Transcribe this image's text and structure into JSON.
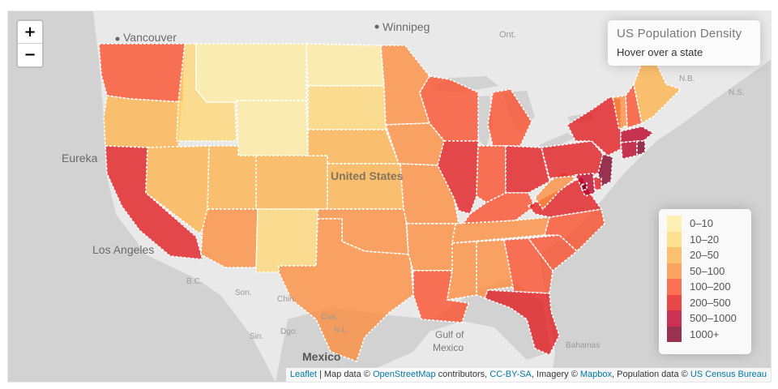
{
  "map": {
    "zoom_in_label": "+",
    "zoom_out_label": "−",
    "states": [
      {
        "id": "WA",
        "density": 102.6
      },
      {
        "id": "OR",
        "density": 40.33
      },
      {
        "id": "CA",
        "density": 241.7
      },
      {
        "id": "ID",
        "density": 19.15
      },
      {
        "id": "NV",
        "density": 24.8
      },
      {
        "id": "MT",
        "density": 6.858
      },
      {
        "id": "WY",
        "density": 5.851
      },
      {
        "id": "UT",
        "density": 34.3
      },
      {
        "id": "AZ",
        "density": 57.05
      },
      {
        "id": "CO",
        "density": 49.33
      },
      {
        "id": "NM",
        "density": 17.16
      },
      {
        "id": "ND",
        "density": 9.916
      },
      {
        "id": "SD",
        "density": 10.86
      },
      {
        "id": "NE",
        "density": 23.97
      },
      {
        "id": "KS",
        "density": 35.09
      },
      {
        "id": "OK",
        "density": 55.22
      },
      {
        "id": "TX",
        "density": 98.07
      },
      {
        "id": "MN",
        "density": 67.14
      },
      {
        "id": "IA",
        "density": 54.81
      },
      {
        "id": "MO",
        "density": 87.26
      },
      {
        "id": "AR",
        "density": 56.43
      },
      {
        "id": "LA",
        "density": 105
      },
      {
        "id": "WI",
        "density": 105.2
      },
      {
        "id": "IL",
        "density": 231.5
      },
      {
        "id": "MI",
        "density": 168.4
      },
      {
        "id": "IN",
        "density": 181.7
      },
      {
        "id": "OH",
        "density": 281.9
      },
      {
        "id": "KY",
        "density": 110
      },
      {
        "id": "TN",
        "density": 88.08
      },
      {
        "id": "MS",
        "density": 63.5
      },
      {
        "id": "AL",
        "density": 94.65
      },
      {
        "id": "GA",
        "density": 169.5
      },
      {
        "id": "FL",
        "density": 353.4
      },
      {
        "id": "SC",
        "density": 155.4
      },
      {
        "id": "NC",
        "density": 198.2
      },
      {
        "id": "VA",
        "density": 204.5
      },
      {
        "id": "WV",
        "density": 77.06
      },
      {
        "id": "PA",
        "density": 284.3
      },
      {
        "id": "NY",
        "density": 412.3
      },
      {
        "id": "VT",
        "density": 67.73
      },
      {
        "id": "NH",
        "density": 147
      },
      {
        "id": "ME",
        "density": 43.04
      },
      {
        "id": "MA",
        "density": 840.2
      },
      {
        "id": "CT",
        "density": 739.1
      },
      {
        "id": "RI",
        "density": 1006
      },
      {
        "id": "NJ",
        "density": 1189
      },
      {
        "id": "DE",
        "density": 464.3
      },
      {
        "id": "MD",
        "density": 594.8
      },
      {
        "id": "DC",
        "density": 10065
      }
    ],
    "basemap_labels": {
      "vancouver": "Vancouver",
      "winnipeg": "Winnipeg",
      "ont": "Ont.",
      "eureka": "Eureka",
      "los_angeles": "Los Angeles",
      "united_states": "United States",
      "mexico": "Mexico",
      "gulf_line1": "Gulf of",
      "gulf_line2": "Mexico",
      "bahamas": "Bahamas",
      "ns": "N.S.",
      "nb": "N.B.",
      "son": "Son.",
      "chih": "Chih.",
      "coa": "Coa.",
      "bc": "B.C.",
      "dgo": "Dgo.",
      "nl": "N.L.",
      "sin": "Sin."
    }
  },
  "info": {
    "title": "US Population Density",
    "hint": "Hover over a state"
  },
  "legend": {
    "items": [
      {
        "label": "0–10",
        "color": "#FFEDA0"
      },
      {
        "label": "10–20",
        "color": "#FED976"
      },
      {
        "label": "20–50",
        "color": "#FEB24C"
      },
      {
        "label": "50–100",
        "color": "#FD8D3C"
      },
      {
        "label": "100–200",
        "color": "#FC4E2A"
      },
      {
        "label": "200–500",
        "color": "#E31A1C"
      },
      {
        "label": "500–1000",
        "color": "#BD0026"
      },
      {
        "label": "1000+",
        "color": "#800026"
      }
    ]
  },
  "attribution": {
    "leaflet": "Leaflet",
    "sep": " | Map data © ",
    "osm": "OpenStreetMap",
    "contributors": " contributors, ",
    "license": "CC-BY-SA",
    "imagery": ", Imagery © ",
    "mapbox": "Mapbox",
    "popdata": ", Population data © ",
    "census": "US Census Bureau"
  }
}
